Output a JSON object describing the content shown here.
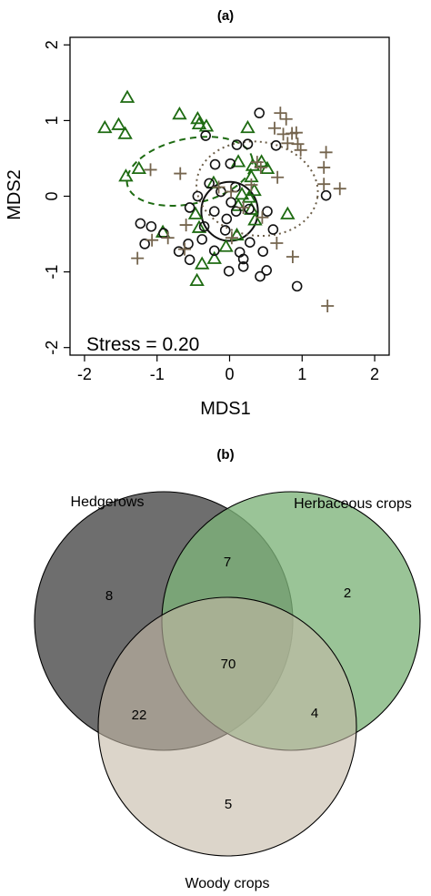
{
  "chart_data": [
    {
      "type": "scatter",
      "panel_label": "(a)",
      "xlabel": "MDS1",
      "ylabel": "MDS2",
      "xlim": [
        -2.2,
        2.2
      ],
      "ylim": [
        -2.1,
        2.1
      ],
      "x_ticks": [
        -2,
        -1,
        0,
        1,
        2
      ],
      "y_ticks": [
        -2,
        -1,
        0,
        1,
        2
      ],
      "tick_labels_x": [
        "-2",
        "-1",
        "0",
        "1",
        "2"
      ],
      "tick_labels_y": [
        "-2",
        "-1",
        "0",
        "1",
        "2"
      ],
      "annotation": "Stress = 0.20",
      "grid": false,
      "series": [
        {
          "marker": "triangle",
          "color": "#1e6b12",
          "points": [
            [
              -1.72,
              0.9
            ],
            [
              -1.53,
              0.94
            ],
            [
              -1.41,
              1.3
            ],
            [
              -1.44,
              0.82
            ],
            [
              -0.69,
              1.08
            ],
            [
              -0.32,
              0.92
            ],
            [
              -0.44,
              1.02
            ],
            [
              0.25,
              0.9
            ],
            [
              -1.43,
              0.26
            ],
            [
              -1.25,
              0.36
            ],
            [
              -0.22,
              0.17
            ],
            [
              0.12,
              0.45
            ],
            [
              0.32,
              0.4
            ],
            [
              0.3,
              0.25
            ],
            [
              0.52,
              0.36
            ],
            [
              0.44,
              0.45
            ],
            [
              0.34,
              0.07
            ],
            [
              0.27,
              -0.02
            ],
            [
              0.12,
              -0.13
            ],
            [
              0.35,
              -0.32
            ],
            [
              0.3,
              -0.18
            ],
            [
              0.17,
              0.02
            ],
            [
              -0.47,
              -0.24
            ],
            [
              0.8,
              -0.24
            ],
            [
              -0.42,
              -0.42
            ],
            [
              -0.21,
              -0.83
            ],
            [
              -0.38,
              -0.9
            ],
            [
              -0.92,
              -0.48
            ],
            [
              -0.05,
              -0.67
            ],
            [
              0.1,
              -0.52
            ],
            [
              -0.45,
              -1.12
            ],
            [
              -0.42,
              0.95
            ]
          ]
        },
        {
          "marker": "circle",
          "color": "#111111",
          "points": [
            [
              0.41,
              1.1
            ],
            [
              -0.33,
              0.8
            ],
            [
              0.1,
              0.68
            ],
            [
              0.25,
              0.69
            ],
            [
              -0.2,
              0.42
            ],
            [
              0.01,
              0.43
            ],
            [
              -0.28,
              0.17
            ],
            [
              -0.12,
              0.06
            ],
            [
              0.08,
              0.12
            ],
            [
              0.02,
              -0.08
            ],
            [
              -0.44,
              0.0
            ],
            [
              -0.21,
              -0.2
            ],
            [
              -0.55,
              -0.15
            ],
            [
              0.09,
              -0.2
            ],
            [
              0.27,
              -0.17
            ],
            [
              -0.04,
              -0.3
            ],
            [
              0.52,
              -0.2
            ],
            [
              0.6,
              -0.44
            ],
            [
              -0.06,
              -0.45
            ],
            [
              -0.38,
              -0.57
            ],
            [
              -0.21,
              -0.72
            ],
            [
              0.28,
              -0.61
            ],
            [
              -0.57,
              -0.63
            ],
            [
              -0.91,
              -0.49
            ],
            [
              -1.08,
              -0.4
            ],
            [
              -1.17,
              -0.63
            ],
            [
              -1.23,
              -0.36
            ],
            [
              -0.7,
              -0.73
            ],
            [
              -0.55,
              -0.84
            ],
            [
              0.14,
              -0.74
            ],
            [
              0.46,
              -0.73
            ],
            [
              0.19,
              -0.93
            ],
            [
              -0.01,
              -0.99
            ],
            [
              0.51,
              -0.98
            ],
            [
              0.19,
              -0.83
            ],
            [
              0.42,
              -1.06
            ],
            [
              0.93,
              -1.19
            ],
            [
              1.33,
              0.01
            ],
            [
              0.64,
              0.67
            ],
            [
              -0.35,
              -0.4
            ]
          ]
        },
        {
          "marker": "plus",
          "color": "#75654e",
          "points": [
            [
              0.7,
              1.1
            ],
            [
              0.78,
              1.02
            ],
            [
              0.62,
              0.9
            ],
            [
              0.74,
              0.82
            ],
            [
              0.86,
              0.83
            ],
            [
              0.92,
              0.84
            ],
            [
              0.8,
              0.7
            ],
            [
              0.94,
              0.69
            ],
            [
              0.98,
              0.61
            ],
            [
              1.33,
              0.58
            ],
            [
              1.3,
              0.38
            ],
            [
              1.52,
              0.1
            ],
            [
              1.3,
              0.16
            ],
            [
              0.66,
              0.25
            ],
            [
              0.43,
              0.38
            ],
            [
              0.38,
              0.45
            ],
            [
              -1.09,
              0.35
            ],
            [
              -0.68,
              0.3
            ],
            [
              -0.15,
              0.12
            ],
            [
              0.02,
              0.06
            ],
            [
              0.3,
              0.15
            ],
            [
              0.19,
              -0.15
            ],
            [
              -0.6,
              -0.38
            ],
            [
              -0.85,
              -0.55
            ],
            [
              -1.07,
              -0.58
            ],
            [
              -0.62,
              -0.7
            ],
            [
              0.03,
              -0.55
            ],
            [
              0.87,
              -0.8
            ],
            [
              0.65,
              -0.62
            ],
            [
              -1.27,
              -0.82
            ],
            [
              1.35,
              -1.45
            ],
            [
              0.45,
              -0.28
            ]
          ]
        }
      ],
      "ellipses": [
        {
          "cx": -0.55,
          "cy": 0.33,
          "rx": 0.88,
          "ry": 0.43,
          "rotate_deg": -12,
          "color": "#1e6b12",
          "style": "dashed"
        },
        {
          "cx": 0.0,
          "cy": -0.2,
          "rx": 0.39,
          "ry": 0.39,
          "rotate_deg": 0,
          "color": "#111111",
          "style": "solid"
        },
        {
          "cx": 0.38,
          "cy": 0.1,
          "rx": 0.84,
          "ry": 0.62,
          "rotate_deg": 8,
          "color": "#6c5e48",
          "style": "dotted"
        }
      ]
    },
    {
      "type": "venn",
      "panel_label": "(b)",
      "sets": [
        {
          "name": "Hedgerows",
          "color": "#6e6e6e"
        },
        {
          "name": "Herbaceous crops",
          "color": "#7db37a"
        },
        {
          "name": "Woody crops",
          "color": "#c4b9a6"
        }
      ],
      "regions": [
        {
          "sets": [
            "Hedgerows"
          ],
          "value": 8
        },
        {
          "sets": [
            "Herbaceous crops"
          ],
          "value": 2
        },
        {
          "sets": [
            "Woody crops"
          ],
          "value": 5
        },
        {
          "sets": [
            "Hedgerows",
            "Herbaceous crops"
          ],
          "value": 7
        },
        {
          "sets": [
            "Hedgerows",
            "Woody crops"
          ],
          "value": 22
        },
        {
          "sets": [
            "Herbaceous crops",
            "Woody crops"
          ],
          "value": 4
        },
        {
          "sets": [
            "Hedgerows",
            "Herbaceous crops",
            "Woody crops"
          ],
          "value": 70
        }
      ]
    }
  ]
}
